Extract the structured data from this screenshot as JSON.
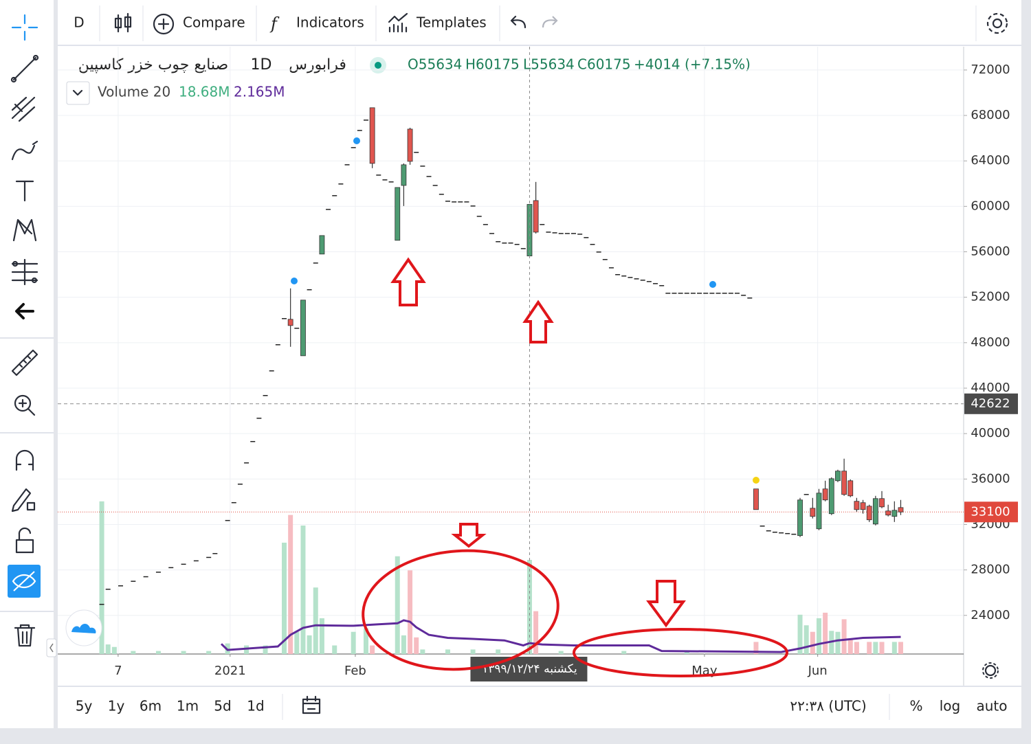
{
  "toolbar": {
    "interval": "D",
    "items": [
      "Compare",
      "Indicators",
      "Templates"
    ]
  },
  "legend": {
    "symbol": "صنایع چوب خزر کاسپین",
    "interval": "1D",
    "exchange": "فرابورس",
    "ohlc": [
      "O55634",
      "H60175",
      "L55634",
      "C60175",
      "+4014 (+7.15%)"
    ],
    "indicator": "Volume 20",
    "indicator_values": [
      "18.68M",
      "2.165M"
    ]
  },
  "chart_data": {
    "type": "candlestick",
    "xlim": [
      0,
      144
    ],
    "xticks": [
      {
        "value": 9.6,
        "label": "7"
      },
      {
        "value": 27.4,
        "label": "2021"
      },
      {
        "value": 47.3,
        "label": "Feb"
      },
      {
        "value": 102.8,
        "label": "May"
      },
      {
        "value": 120.8,
        "label": "Jun"
      }
    ],
    "ylim": [
      20600,
      74050
    ],
    "yticks": [
      24000,
      28000,
      32000,
      36000,
      40000,
      44000,
      48000,
      52000,
      56000,
      60000,
      64000,
      68000,
      72000
    ],
    "grid": true,
    "candles": {
      "up_color": "#4e9b72",
      "down_color": "#e0564f",
      "x": [
        37,
        39,
        42,
        50,
        54,
        55,
        56,
        75,
        76,
        111,
        118,
        120,
        121,
        122,
        123,
        124,
        125,
        126,
        127,
        128,
        129,
        130,
        131,
        132,
        133,
        134
      ],
      "open": [
        50060,
        46850,
        55800,
        68680,
        57010,
        61840,
        66800,
        55634,
        60510,
        35130,
        31020,
        33430,
        31620,
        35130,
        32950,
        35850,
        36700,
        35850,
        34040,
        33920,
        33610,
        32040,
        34280,
        33190,
        32710,
        33490
      ],
      "high": [
        52780,
        51750,
        57430,
        68680,
        61660,
        63780,
        66920,
        60175,
        62150,
        35130,
        34340,
        34340,
        35130,
        35850,
        36150,
        36820,
        37790,
        35970,
        34340,
        34160,
        33740,
        34520,
        34940,
        33740,
        34040,
        34160
      ],
      "low": [
        47640,
        46850,
        55800,
        63360,
        57010,
        60030,
        63660,
        55634,
        57610,
        33310,
        30890,
        32530,
        31500,
        34040,
        32830,
        35730,
        34520,
        34400,
        33130,
        32950,
        32220,
        31920,
        33430,
        32710,
        32220,
        32830
      ],
      "close": [
        49510,
        51750,
        57430,
        63780,
        61660,
        63660,
        63960,
        60175,
        57730,
        33310,
        34160,
        32710,
        34760,
        34160,
        36030,
        36700,
        34640,
        34520,
        33310,
        33310,
        32410,
        34280,
        33550,
        32830,
        33250,
        33100
      ]
    },
    "limit_days": {
      "color": "#222222",
      "x": [
        7,
        8,
        10,
        12,
        14,
        16,
        18,
        20,
        22,
        24,
        25,
        27,
        28,
        29,
        30,
        31,
        32,
        33,
        34,
        35,
        36,
        38,
        40,
        41,
        43,
        44,
        45,
        46,
        47,
        48,
        49,
        51,
        52,
        53,
        57,
        58,
        59,
        60,
        61,
        62,
        63,
        64,
        65,
        66,
        67,
        68,
        69,
        70,
        71,
        72,
        73,
        74,
        77,
        78,
        79,
        80,
        81,
        82,
        83,
        84,
        85,
        86,
        87,
        88,
        89,
        90,
        91,
        92,
        93,
        94,
        95,
        96,
        97,
        98,
        99,
        100,
        101,
        102,
        103,
        104,
        105,
        106,
        107,
        108,
        109,
        110,
        112,
        113,
        114,
        115,
        116,
        117,
        119
      ],
      "values": [
        24970,
        26300,
        26600,
        27000,
        27400,
        27800,
        28200,
        28500,
        28800,
        29100,
        29440,
        32350,
        33920,
        35550,
        37420,
        39300,
        41350,
        43350,
        45520,
        47820,
        50120,
        49270,
        52660,
        55010,
        59730,
        60940,
        61970,
        63660,
        65170,
        66680,
        67590,
        62750,
        62330,
        62150,
        64750,
        63540,
        62630,
        61840,
        61060,
        60450,
        60390,
        60390,
        60390,
        60030,
        59120,
        58400,
        57610,
        56890,
        56770,
        56770,
        56650,
        56280,
        58400,
        57730,
        57670,
        57610,
        57610,
        57610,
        57550,
        57250,
        56650,
        55980,
        55320,
        54590,
        53990,
        53870,
        53740,
        53620,
        53500,
        53380,
        53200,
        53020,
        52350,
        52350,
        52350,
        52350,
        52350,
        52350,
        52350,
        52350,
        52350,
        52350,
        52350,
        52350,
        52170,
        51930,
        31860,
        31440,
        31320,
        31260,
        31200,
        31140,
        34640
      ]
    },
    "volume": {
      "ylim": [
        0,
        36
      ],
      "series": [
        {
          "color": "#b5e2cb",
          "x": [
            7,
            8,
            9,
            12,
            16,
            20,
            24,
            27,
            30,
            33,
            36,
            38,
            39,
            40,
            41,
            42,
            44,
            47,
            49,
            54,
            55,
            58,
            62,
            66,
            70,
            75,
            80,
            90,
            100,
            118,
            119,
            121,
            123,
            124,
            130,
            133
          ],
          "values": [
            30.3,
            1.9,
            1.4,
            0.6,
            0.6,
            0.6,
            0.6,
            2.1,
            1.7,
            1.7,
            22.1,
            4.4,
            25.5,
            3.7,
            13.2,
            7.1,
            1.7,
            4.4,
            5.1,
            19.4,
            3.7,
            0.9,
            0.9,
            0.9,
            0.9,
            18.68,
            0.6,
            0.6,
            0.6,
            7.8,
            5.7,
            7.1,
            4.6,
            4.4,
            2.4,
            2.4
          ]
        },
        {
          "color": "#f6bcc1",
          "x": [
            37,
            50,
            56,
            57,
            76,
            111,
            120,
            122,
            125,
            126,
            127,
            129,
            131,
            134
          ],
          "values": [
            27.6,
            1.7,
            16.6,
            3.3,
            8.5,
            2.4,
            4.4,
            8.2,
            6.9,
            3.0,
            2.4,
            2.4,
            2.4,
            2.4
          ]
        }
      ]
    },
    "volume_ma": {
      "color": "#5e2a9a",
      "x": [
        26,
        27,
        35,
        37,
        39,
        41,
        47,
        51,
        54,
        55,
        56,
        57,
        59,
        62,
        66,
        71,
        74,
        75,
        77,
        82,
        94,
        96,
        115,
        118,
        121,
        124,
        128,
        134
      ],
      "values": [
        2.0,
        0.8,
        1.5,
        3.8,
        5.2,
        5.7,
        5.6,
        5.9,
        6.1,
        6.7,
        6.4,
        5.3,
        3.8,
        3.2,
        3.0,
        2.7,
        1.7,
        2.165,
        1.9,
        1.7,
        1.7,
        0.6,
        0.4,
        1.1,
        2.0,
        2.7,
        3.2,
        3.4
      ]
    },
    "crosshair": {
      "x": 75,
      "price": 42622,
      "date_label": "یکشنبه ۱۳۹۹/۱۲/۲۴"
    },
    "last_price": {
      "value": 33100,
      "color": "#e0483c"
    }
  },
  "bottom_bar": {
    "ranges": [
      "5y",
      "1y",
      "6m",
      "1m",
      "5d",
      "1d"
    ],
    "time": "۲۲:۳۸ (UTC)",
    "options": [
      "%",
      "log",
      "auto"
    ]
  }
}
